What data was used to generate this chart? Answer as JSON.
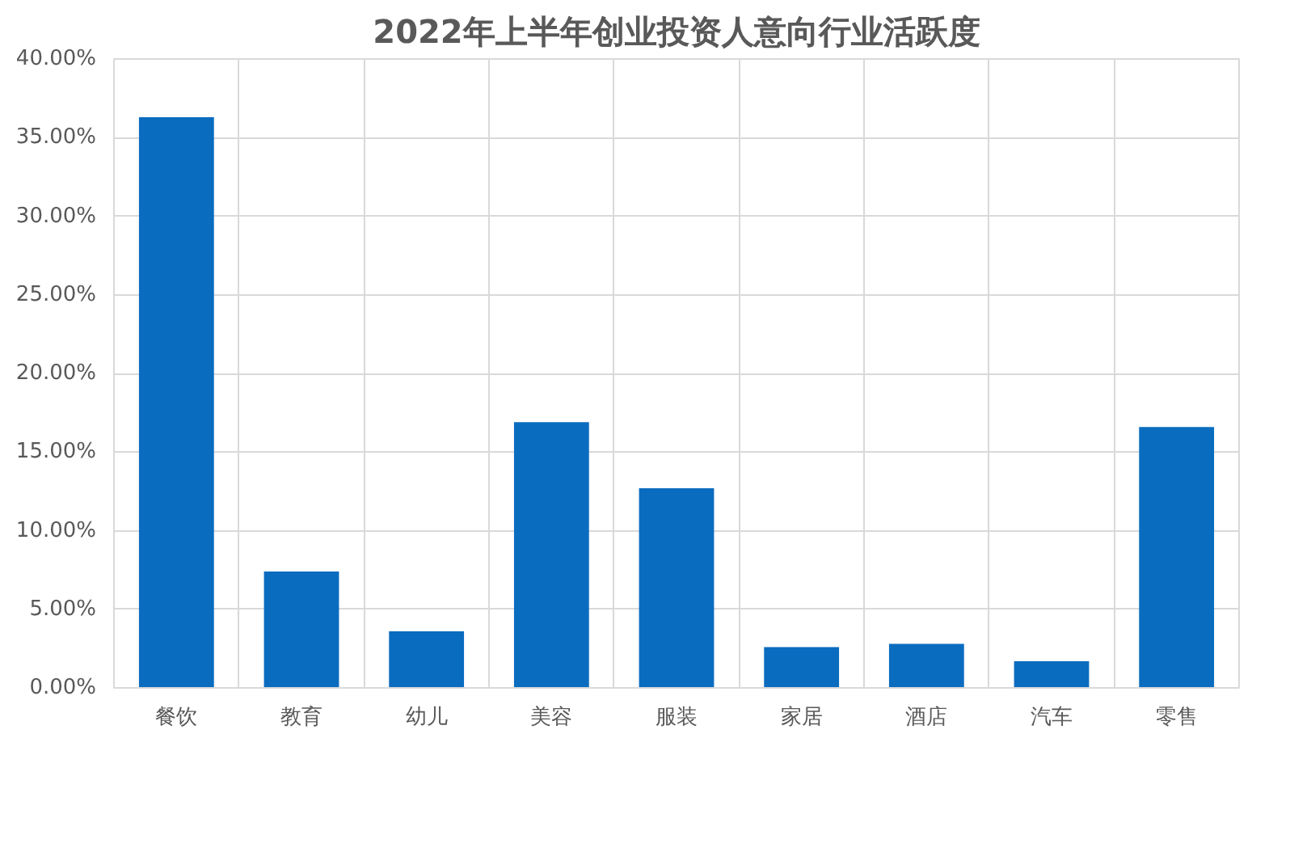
{
  "chart_data": {
    "type": "bar",
    "title": "2022年上半年创业投资人意向行业活跃度",
    "categories": [
      "餐饮",
      "教育",
      "幼儿",
      "美容",
      "服装",
      "家居",
      "酒店",
      "汽车",
      "零售"
    ],
    "values": [
      36.3,
      7.4,
      3.6,
      16.9,
      12.7,
      2.6,
      2.8,
      1.7,
      16.6
    ],
    "color": "#0a6cbf",
    "ylim": [
      0,
      40
    ],
    "yticks": [
      {
        "value": 0,
        "label": "0.00%"
      },
      {
        "value": 5,
        "label": "5.00%"
      },
      {
        "value": 10,
        "label": "10.00%"
      },
      {
        "value": 15,
        "label": "15.00%"
      },
      {
        "value": 20,
        "label": "20.00%"
      },
      {
        "value": 25,
        "label": "25.00%"
      },
      {
        "value": 30,
        "label": "30.00%"
      },
      {
        "value": 35,
        "label": "35.00%"
      },
      {
        "value": 40,
        "label": "40.00%"
      }
    ],
    "grid": true
  }
}
